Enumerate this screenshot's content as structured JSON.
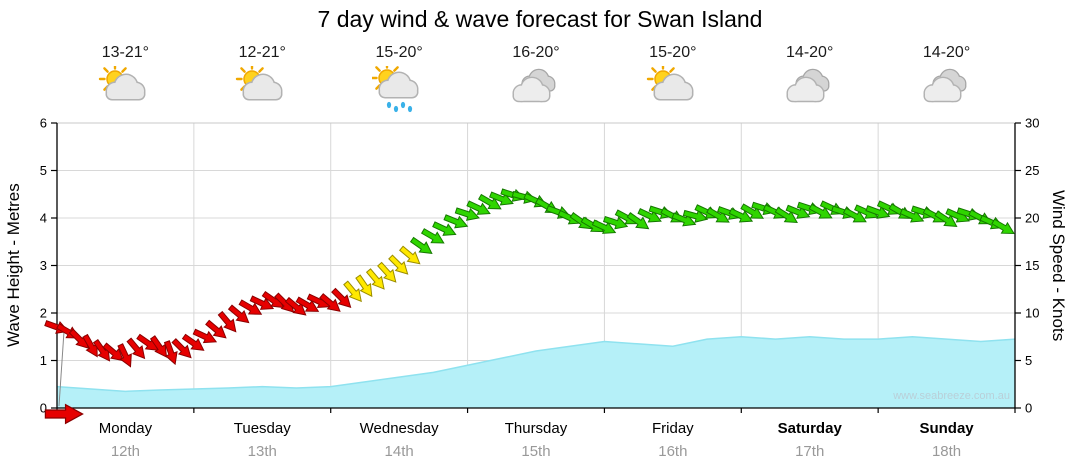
{
  "title": "7 day wind & wave forecast for Swan Island",
  "watermark": "www.seabreeze.com.au",
  "axes": {
    "left_label": "Wave Height - Metres",
    "right_label": "Wind Speed - Knots",
    "left_ticks": [
      0,
      1,
      2,
      3,
      4,
      5,
      6
    ],
    "right_ticks": [
      0,
      5,
      10,
      15,
      20,
      25,
      30
    ]
  },
  "days": [
    {
      "name": "Monday",
      "date": "12th",
      "temp": "13-21°",
      "icon": "sun-cloud",
      "bold": false
    },
    {
      "name": "Tuesday",
      "date": "13th",
      "temp": "12-21°",
      "icon": "sun-cloud",
      "bold": false
    },
    {
      "name": "Wednesday",
      "date": "14th",
      "temp": "15-20°",
      "icon": "sun-cloud-rain",
      "bold": false
    },
    {
      "name": "Thursday",
      "date": "15th",
      "temp": "16-20°",
      "icon": "cloudy",
      "bold": false
    },
    {
      "name": "Friday",
      "date": "16th",
      "temp": "15-20°",
      "icon": "sun-cloud",
      "bold": false
    },
    {
      "name": "Saturday",
      "date": "17th",
      "temp": "14-20°",
      "icon": "cloudy",
      "bold": true
    },
    {
      "name": "Sunday",
      "date": "18th",
      "temp": "14-20°",
      "icon": "cloudy",
      "bold": true
    }
  ],
  "chart_data": {
    "type": "line",
    "title": "7 day wind & wave forecast for Swan Island",
    "x_unit": "hours_from_monday_0000",
    "x_range": [
      0,
      168
    ],
    "grid": true,
    "speed_colors": {
      "light_max_kn": 12,
      "moderate_max_kn": 16.5,
      "light": "#e60000",
      "light_edge": "#8a0000",
      "moderate": "#ffe800",
      "moderate_edge": "#9a8c00",
      "fresh": "#2fd500",
      "fresh_edge": "#157800"
    },
    "wave_fill": "#b5f0f8",
    "wave_edge": "#8fe2ef",
    "series": [
      {
        "name": "Wind Speed",
        "units": "knots",
        "axis": "right",
        "ylim": [
          0,
          30
        ],
        "point_format": [
          "hour",
          "knots",
          "direction_deg_cw_from_east"
        ],
        "points": [
          [
            0,
            8.5,
            20
          ],
          [
            2,
            8,
            30
          ],
          [
            4,
            7.2,
            45
          ],
          [
            6,
            6.5,
            60
          ],
          [
            8,
            6,
            55
          ],
          [
            10,
            5.8,
            40
          ],
          [
            12,
            5.5,
            65
          ],
          [
            14,
            6.2,
            50
          ],
          [
            16,
            6.8,
            35
          ],
          [
            18,
            6.4,
            55
          ],
          [
            20,
            5.8,
            70
          ],
          [
            22,
            6.2,
            45
          ],
          [
            24,
            6.8,
            35
          ],
          [
            26,
            7.5,
            25
          ],
          [
            28,
            8.2,
            40
          ],
          [
            30,
            9,
            50
          ],
          [
            32,
            9.8,
            40
          ],
          [
            34,
            10.5,
            30
          ],
          [
            36,
            11,
            25
          ],
          [
            38,
            11.3,
            35
          ],
          [
            40,
            11,
            45
          ],
          [
            42,
            10.6,
            40
          ],
          [
            44,
            10.8,
            30
          ],
          [
            46,
            11.2,
            25
          ],
          [
            48,
            11,
            40
          ],
          [
            50,
            11.5,
            45
          ],
          [
            52,
            12.2,
            50
          ],
          [
            54,
            12.8,
            55
          ],
          [
            56,
            13.5,
            50
          ],
          [
            58,
            14.2,
            48
          ],
          [
            60,
            15,
            45
          ],
          [
            62,
            16,
            40
          ],
          [
            64,
            17,
            35
          ],
          [
            66,
            18,
            30
          ],
          [
            68,
            18.8,
            25
          ],
          [
            70,
            19.6,
            22
          ],
          [
            72,
            20.4,
            18
          ],
          [
            74,
            21,
            25
          ],
          [
            76,
            21.6,
            30
          ],
          [
            78,
            22,
            22
          ],
          [
            80,
            22.4,
            18
          ],
          [
            82,
            22.2,
            15
          ],
          [
            84,
            21.8,
            25
          ],
          [
            86,
            21.2,
            30
          ],
          [
            88,
            20.6,
            20
          ],
          [
            90,
            20,
            25
          ],
          [
            92,
            19.6,
            35
          ],
          [
            94,
            19.2,
            30
          ],
          [
            96,
            19,
            25
          ],
          [
            98,
            19.5,
            18
          ],
          [
            100,
            20,
            28
          ],
          [
            102,
            19.6,
            35
          ],
          [
            104,
            20.2,
            25
          ],
          [
            106,
            20.6,
            18
          ],
          [
            108,
            20.2,
            28
          ],
          [
            110,
            19.8,
            22
          ],
          [
            112,
            20.2,
            15
          ],
          [
            114,
            20.6,
            25
          ],
          [
            116,
            20.2,
            30
          ],
          [
            118,
            20.5,
            20
          ],
          [
            120,
            20.2,
            25
          ],
          [
            122,
            20.6,
            30
          ],
          [
            124,
            21,
            18
          ],
          [
            126,
            20.6,
            25
          ],
          [
            128,
            20.2,
            32
          ],
          [
            130,
            20.6,
            22
          ],
          [
            132,
            21,
            18
          ],
          [
            134,
            20.6,
            28
          ],
          [
            136,
            21,
            25
          ],
          [
            138,
            20.6,
            18
          ],
          [
            140,
            20.2,
            28
          ],
          [
            142,
            20.6,
            24
          ],
          [
            144,
            20.6,
            20
          ],
          [
            146,
            21,
            25
          ],
          [
            148,
            20.6,
            30
          ],
          [
            150,
            20.2,
            24
          ],
          [
            152,
            20.6,
            18
          ],
          [
            154,
            20.2,
            28
          ],
          [
            156,
            19.8,
            33
          ],
          [
            158,
            20.2,
            24
          ],
          [
            160,
            20.4,
            18
          ],
          [
            162,
            20,
            28
          ],
          [
            164,
            19.5,
            24
          ],
          [
            166,
            19,
            30
          ]
        ]
      },
      {
        "name": "Wave Height",
        "units": "metres",
        "axis": "left",
        "ylim": [
          0,
          6
        ],
        "point_format": [
          "hour",
          "metres"
        ],
        "points": [
          [
            0,
            0.45
          ],
          [
            6,
            0.4
          ],
          [
            12,
            0.35
          ],
          [
            18,
            0.38
          ],
          [
            24,
            0.4
          ],
          [
            30,
            0.42
          ],
          [
            36,
            0.45
          ],
          [
            42,
            0.42
          ],
          [
            48,
            0.45
          ],
          [
            54,
            0.55
          ],
          [
            60,
            0.65
          ],
          [
            66,
            0.75
          ],
          [
            72,
            0.9
          ],
          [
            78,
            1.05
          ],
          [
            84,
            1.2
          ],
          [
            90,
            1.3
          ],
          [
            96,
            1.4
          ],
          [
            102,
            1.35
          ],
          [
            108,
            1.3
          ],
          [
            114,
            1.45
          ],
          [
            120,
            1.5
          ],
          [
            126,
            1.45
          ],
          [
            132,
            1.5
          ],
          [
            138,
            1.45
          ],
          [
            144,
            1.45
          ],
          [
            150,
            1.5
          ],
          [
            156,
            1.45
          ],
          [
            162,
            1.4
          ],
          [
            168,
            1.45
          ]
        ]
      }
    ]
  }
}
